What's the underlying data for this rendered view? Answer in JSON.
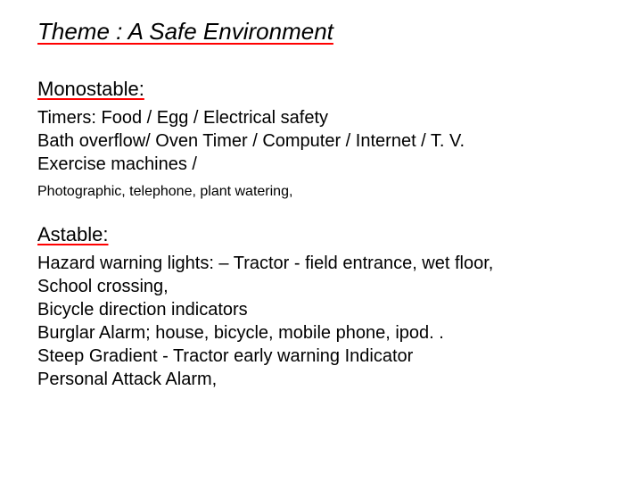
{
  "title": "Theme : A Safe Environment",
  "sections": {
    "monostable": {
      "heading": "Monostable:",
      "body": "Timers: Food / Egg / Electrical safety\nBath overflow/ Oven Timer / Computer / Internet / T. V.\nExercise machines /",
      "small": "Photographic, telephone, plant watering,"
    },
    "astable": {
      "heading": "Astable:",
      "body": "Hazard warning lights: – Tractor - field entrance, wet floor,\nSchool crossing,\nBicycle direction indicators\nBurglar Alarm; house, bicycle, mobile phone, ipod. .\nSteep Gradient - Tractor early warning Indicator\nPersonal Attack Alarm,"
    }
  },
  "colors": {
    "underline": "#ff0000",
    "text": "#000000",
    "background": "#ffffff"
  },
  "typography": {
    "title_fontsize": 26,
    "heading_fontsize": 22,
    "body_fontsize": 20,
    "small_fontsize": 16,
    "font_family": "Verdana"
  }
}
